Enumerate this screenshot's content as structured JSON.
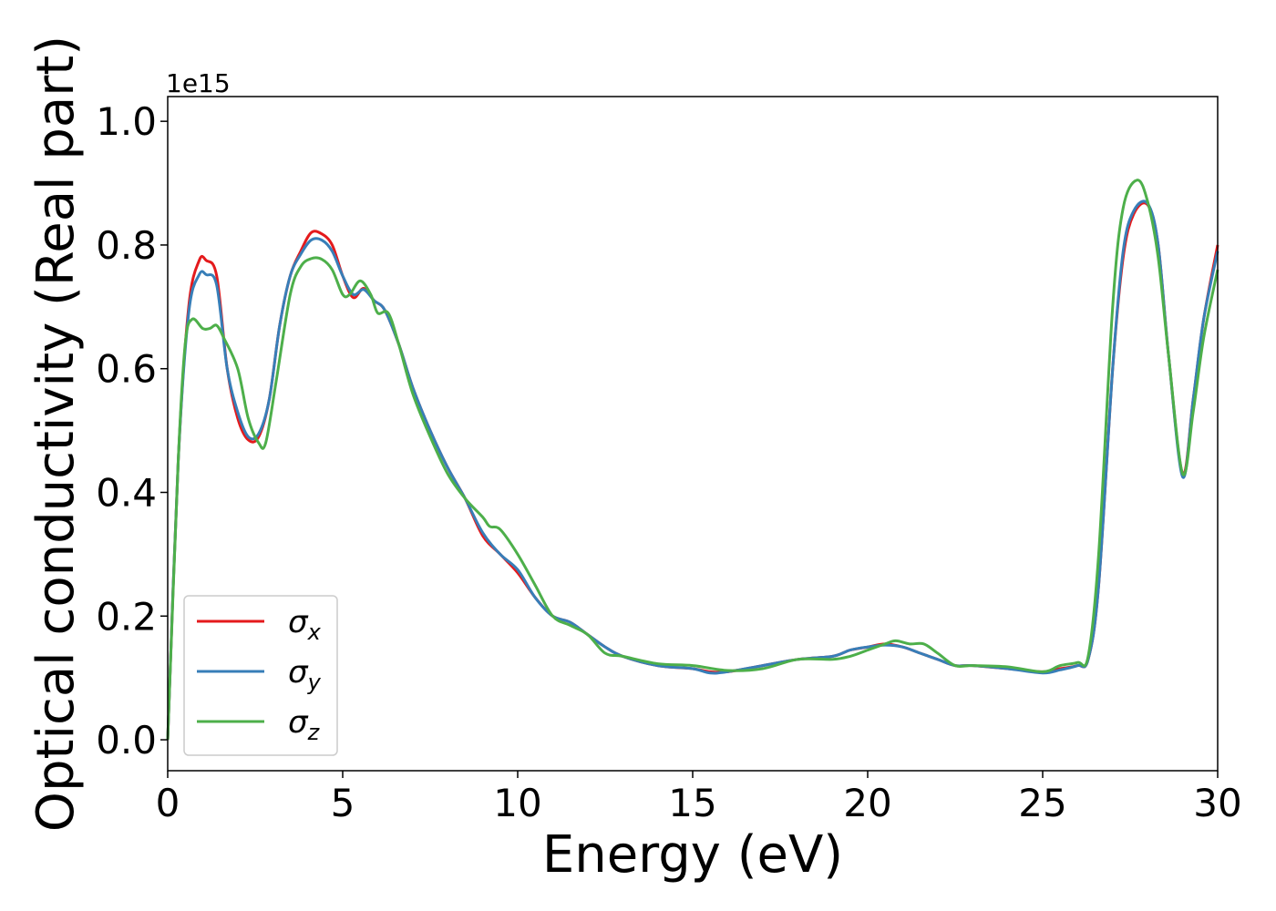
{
  "chart_data": {
    "type": "line",
    "xlabel": "Energy (eV)",
    "ylabel": "Optical conductivity (Real part)",
    "y_offset_label": "1e15",
    "xlim": [
      0,
      30
    ],
    "ylim": [
      -0.05,
      1.04
    ],
    "x_ticks": [
      0,
      5,
      10,
      15,
      20,
      25,
      30
    ],
    "x_tick_labels": [
      "0",
      "5",
      "10",
      "15",
      "20",
      "25",
      "30"
    ],
    "y_ticks": [
      0.0,
      0.2,
      0.4,
      0.6,
      0.8,
      1.0
    ],
    "y_tick_labels": [
      "0.0",
      "0.2",
      "0.4",
      "0.6",
      "0.8",
      "1.0"
    ],
    "grid": false,
    "legend_position": "lower-left",
    "series": [
      {
        "name": "σx",
        "symbol": "σ",
        "subscript": "x",
        "color": "#e41a1c",
        "x": [
          0,
          0.3,
          0.6,
          0.9,
          1.1,
          1.4,
          1.7,
          2.0,
          2.3,
          2.6,
          2.9,
          3.2,
          3.5,
          3.8,
          4.1,
          4.4,
          4.7,
          5.0,
          5.3,
          5.6,
          5.9,
          6.2,
          6.6,
          7.0,
          7.5,
          8.0,
          8.5,
          9.0,
          9.5,
          10.0,
          10.5,
          11.0,
          11.5,
          12.0,
          12.5,
          13.0,
          14.0,
          15.0,
          15.5,
          16.0,
          17.0,
          18.0,
          19.0,
          19.5,
          20.0,
          20.5,
          21.0,
          21.5,
          22.0,
          22.5,
          23.0,
          24.0,
          25.0,
          25.5,
          26.0,
          26.3,
          26.6,
          27.0,
          27.3,
          27.6,
          28.0,
          28.3,
          28.6,
          29.0,
          29.3,
          29.6,
          30.0
        ],
        "y": [
          0.0,
          0.45,
          0.7,
          0.775,
          0.775,
          0.75,
          0.6,
          0.52,
          0.485,
          0.49,
          0.55,
          0.67,
          0.75,
          0.79,
          0.82,
          0.818,
          0.8,
          0.75,
          0.715,
          0.73,
          0.71,
          0.695,
          0.64,
          0.57,
          0.5,
          0.44,
          0.39,
          0.33,
          0.3,
          0.27,
          0.23,
          0.2,
          0.19,
          0.17,
          0.15,
          0.135,
          0.12,
          0.115,
          0.11,
          0.11,
          0.12,
          0.13,
          0.135,
          0.145,
          0.15,
          0.155,
          0.15,
          0.14,
          0.13,
          0.12,
          0.12,
          0.115,
          0.11,
          0.115,
          0.12,
          0.13,
          0.25,
          0.6,
          0.78,
          0.85,
          0.865,
          0.8,
          0.62,
          0.43,
          0.55,
          0.68,
          0.8
        ]
      },
      {
        "name": "σy",
        "symbol": "σ",
        "subscript": "y",
        "color": "#377eb8",
        "x": [
          0,
          0.3,
          0.6,
          0.9,
          1.1,
          1.4,
          1.7,
          2.0,
          2.3,
          2.6,
          2.9,
          3.2,
          3.5,
          3.8,
          4.1,
          4.4,
          4.7,
          5.0,
          5.3,
          5.6,
          5.9,
          6.2,
          6.6,
          7.0,
          7.5,
          8.0,
          8.5,
          9.0,
          9.5,
          10.0,
          10.5,
          11.0,
          11.5,
          12.0,
          12.5,
          13.0,
          14.0,
          15.0,
          15.5,
          16.0,
          17.0,
          18.0,
          19.0,
          19.5,
          20.0,
          20.5,
          21.0,
          21.5,
          22.0,
          22.5,
          23.0,
          24.0,
          25.0,
          25.5,
          26.0,
          26.3,
          26.6,
          27.0,
          27.3,
          27.6,
          28.0,
          28.3,
          28.6,
          29.0,
          29.3,
          29.6,
          30.0
        ],
        "y": [
          0.0,
          0.45,
          0.69,
          0.752,
          0.752,
          0.735,
          0.6,
          0.53,
          0.49,
          0.495,
          0.55,
          0.67,
          0.75,
          0.785,
          0.808,
          0.808,
          0.79,
          0.75,
          0.72,
          0.728,
          0.71,
          0.695,
          0.64,
          0.57,
          0.5,
          0.44,
          0.39,
          0.335,
          0.3,
          0.275,
          0.23,
          0.2,
          0.19,
          0.17,
          0.15,
          0.135,
          0.12,
          0.115,
          0.108,
          0.11,
          0.12,
          0.13,
          0.135,
          0.145,
          0.15,
          0.153,
          0.15,
          0.14,
          0.13,
          0.12,
          0.12,
          0.115,
          0.108,
          0.113,
          0.12,
          0.13,
          0.25,
          0.6,
          0.79,
          0.855,
          0.867,
          0.8,
          0.62,
          0.425,
          0.55,
          0.68,
          0.79
        ]
      },
      {
        "name": "σz",
        "symbol": "σ",
        "subscript": "z",
        "color": "#4daf4a",
        "x": [
          0,
          0.3,
          0.5,
          0.7,
          1.0,
          1.2,
          1.4,
          1.6,
          2.0,
          2.3,
          2.6,
          2.8,
          3.1,
          3.5,
          3.8,
          4.1,
          4.4,
          4.7,
          5.0,
          5.2,
          5.5,
          5.8,
          6.0,
          6.3,
          6.6,
          7.0,
          7.5,
          8.0,
          8.5,
          9.0,
          9.2,
          9.5,
          10.0,
          10.5,
          11.0,
          11.5,
          12.0,
          12.5,
          13.0,
          14.0,
          15.0,
          16.0,
          17.0,
          18.0,
          19.0,
          19.5,
          20.0,
          20.5,
          20.8,
          21.2,
          21.6,
          22.0,
          22.5,
          23.0,
          24.0,
          25.0,
          25.5,
          26.0,
          26.3,
          26.6,
          27.0,
          27.3,
          27.7,
          28.0,
          28.3,
          28.6,
          29.0,
          29.3,
          29.6,
          30.0
        ],
        "y": [
          0.0,
          0.45,
          0.64,
          0.68,
          0.665,
          0.665,
          0.67,
          0.65,
          0.6,
          0.52,
          0.48,
          0.48,
          0.58,
          0.72,
          0.765,
          0.778,
          0.777,
          0.76,
          0.72,
          0.72,
          0.742,
          0.72,
          0.69,
          0.69,
          0.64,
          0.56,
          0.49,
          0.43,
          0.39,
          0.36,
          0.345,
          0.34,
          0.3,
          0.25,
          0.2,
          0.185,
          0.17,
          0.14,
          0.135,
          0.123,
          0.12,
          0.112,
          0.115,
          0.13,
          0.13,
          0.135,
          0.145,
          0.155,
          0.16,
          0.155,
          0.155,
          0.14,
          0.12,
          0.12,
          0.118,
          0.11,
          0.12,
          0.125,
          0.135,
          0.3,
          0.7,
          0.86,
          0.905,
          0.87,
          0.78,
          0.62,
          0.43,
          0.53,
          0.65,
          0.76
        ]
      }
    ]
  }
}
